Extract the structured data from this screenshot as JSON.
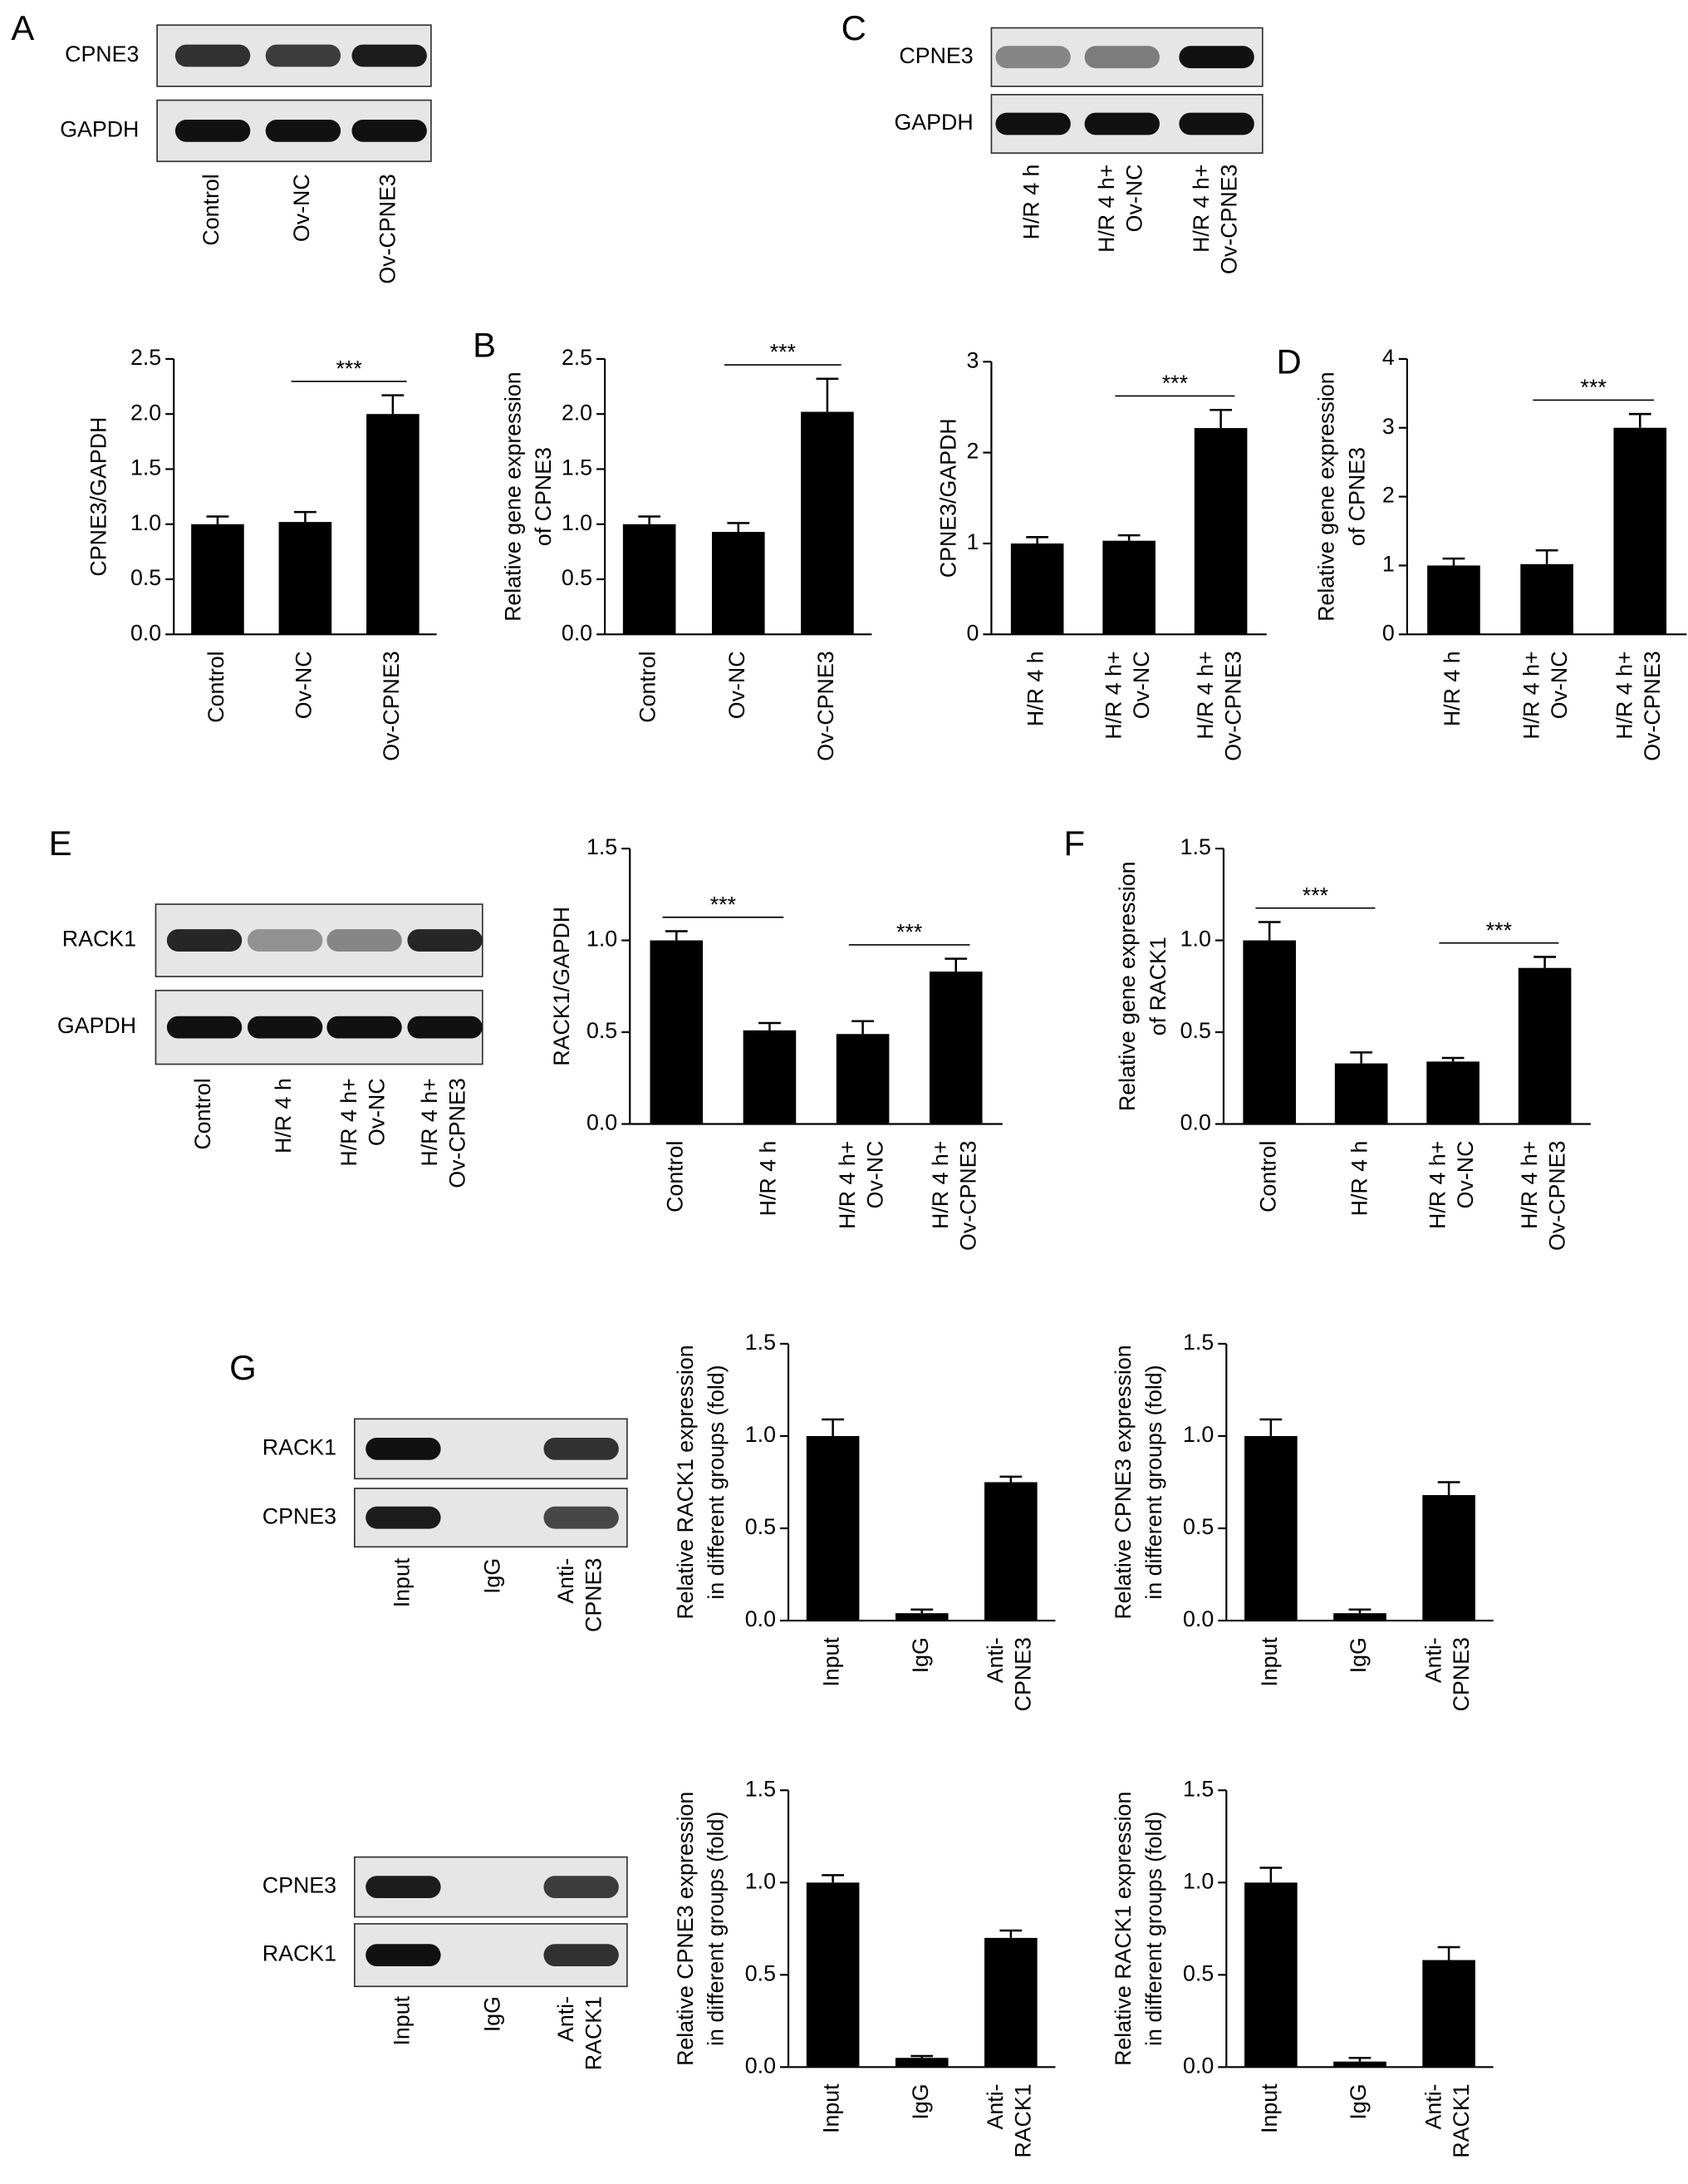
{
  "panels": [
    "A",
    "B",
    "C",
    "D",
    "E",
    "F",
    "G"
  ],
  "blots": [
    {
      "rows": [
        "CPNE3",
        "GAPDH"
      ],
      "lanes": [
        [
          "Control"
        ],
        [
          "Ov-NC"
        ],
        [
          "Ov-CPNE3"
        ]
      ]
    },
    {
      "rows": [
        "CPNE3",
        "GAPDH"
      ],
      "lanes": [
        [
          "H/R 4 h"
        ],
        [
          "H/R 4 h+",
          "Ov-NC"
        ],
        [
          "H/R 4 h+",
          "Ov-CPNE3"
        ]
      ]
    },
    {
      "rows": [
        "RACK1",
        "GAPDH"
      ],
      "lanes": [
        [
          "Control"
        ],
        [
          "H/R 4 h"
        ],
        [
          "H/R 4 h+",
          "Ov-NC"
        ],
        [
          "H/R 4 h+",
          "Ov-CPNE3"
        ]
      ]
    },
    {
      "rows": [
        "RACK1",
        "CPNE3"
      ],
      "lanes": [
        [
          "Input"
        ],
        [
          "IgG"
        ],
        [
          "Anti-",
          "CPNE3"
        ]
      ]
    },
    {
      "rows": [
        "CPNE3",
        "RACK1"
      ],
      "lanes": [
        [
          "Input"
        ],
        [
          "IgG"
        ],
        [
          "Anti-",
          "RACK1"
        ]
      ]
    }
  ],
  "chart_data": [
    {
      "type": "bar",
      "ylabel": [
        "CPNE3/GAPDH"
      ],
      "color": "#000000",
      "categories": [
        [
          "Control"
        ],
        [
          "Ov-NC"
        ],
        [
          "Ov-CPNE3"
        ]
      ],
      "values": [
        1.0,
        1.02,
        2.0
      ],
      "errors": [
        0.07,
        0.09,
        0.17
      ],
      "ylim": [
        0,
        2.5
      ],
      "yticks": [
        {
          "value": 0,
          "label": "0.0"
        },
        {
          "value": 0.5,
          "label": "0.5"
        },
        {
          "value": 1,
          "label": "1.0"
        },
        {
          "value": 1.5,
          "label": "1.5"
        },
        {
          "value": 2,
          "label": "2.0"
        },
        {
          "value": 2.5,
          "label": "2.5"
        }
      ],
      "significance": [
        {
          "label": "***",
          "between": [
            1,
            2
          ]
        }
      ]
    },
    {
      "type": "bar",
      "ylabel": [
        "Relative gene expression",
        "of CPNE3"
      ],
      "color": "#000000",
      "categories": [
        [
          "Control"
        ],
        [
          "Ov-NC"
        ],
        [
          "Ov-CPNE3"
        ]
      ],
      "values": [
        1.0,
        0.93,
        2.02
      ],
      "errors": [
        0.07,
        0.08,
        0.3
      ],
      "ylim": [
        0,
        2.5
      ],
      "yticks": [
        {
          "value": 0,
          "label": "0.0"
        },
        {
          "value": 0.5,
          "label": "0.5"
        },
        {
          "value": 1,
          "label": "1.0"
        },
        {
          "value": 1.5,
          "label": "1.5"
        },
        {
          "value": 2,
          "label": "2.0"
        },
        {
          "value": 2.5,
          "label": "2.5"
        }
      ],
      "significance": [
        {
          "label": "***",
          "between": [
            1,
            2
          ]
        }
      ]
    },
    {
      "type": "bar",
      "ylabel": [
        "CPNE3/GAPDH"
      ],
      "color": "#000000",
      "categories": [
        [
          "H/R 4 h"
        ],
        [
          "H/R 4 h+",
          "Ov-NC"
        ],
        [
          "H/R 4 h+",
          "Ov-CPNE3"
        ]
      ],
      "values": [
        1.0,
        1.03,
        2.27
      ],
      "errors": [
        0.07,
        0.06,
        0.2
      ],
      "ylim": [
        0,
        3
      ],
      "yticks": [
        0,
        1,
        2,
        3
      ],
      "significance": [
        {
          "label": "***",
          "between": [
            1,
            2
          ]
        }
      ]
    },
    {
      "type": "bar",
      "ylabel": [
        "Relative gene expression",
        "of CPNE3"
      ],
      "color": "#000000",
      "categories": [
        [
          "H/R 4 h"
        ],
        [
          "H/R 4 h+",
          "Ov-NC"
        ],
        [
          "H/R 4 h+",
          "Ov-CPNE3"
        ]
      ],
      "values": [
        1.0,
        1.02,
        3.0
      ],
      "errors": [
        0.1,
        0.2,
        0.2
      ],
      "ylim": [
        0,
        4
      ],
      "yticks": [
        0,
        1,
        2,
        3,
        4
      ],
      "significance": [
        {
          "label": "***",
          "between": [
            1,
            2
          ]
        }
      ]
    },
    {
      "type": "bar",
      "ylabel": [
        "RACK1/GAPDH"
      ],
      "color": "#000000",
      "categories": [
        [
          "Control"
        ],
        [
          "H/R 4 h"
        ],
        [
          "H/R 4 h+",
          "Ov-NC"
        ],
        [
          "H/R 4 h+",
          "Ov-CPNE3"
        ]
      ],
      "values": [
        1.0,
        0.51,
        0.49,
        0.83
      ],
      "errors": [
        0.05,
        0.04,
        0.07,
        0.07
      ],
      "ylim": [
        0,
        1.5
      ],
      "yticks": [
        {
          "value": 0,
          "label": "0.0"
        },
        {
          "value": 0.5,
          "label": "0.5"
        },
        {
          "value": 1,
          "label": "1.0"
        },
        {
          "value": 1.5,
          "label": "1.5"
        }
      ],
      "significance": [
        {
          "label": "***",
          "between": [
            0,
            1
          ]
        },
        {
          "label": "***",
          "between": [
            2,
            3
          ]
        }
      ]
    },
    {
      "type": "bar",
      "ylabel": [
        "Relative gene expression",
        "of RACK1"
      ],
      "color": "#000000",
      "categories": [
        [
          "Control"
        ],
        [
          "H/R 4 h"
        ],
        [
          "H/R 4 h+",
          "Ov-NC"
        ],
        [
          "H/R 4 h+",
          "Ov-CPNE3"
        ]
      ],
      "values": [
        1.0,
        0.33,
        0.34,
        0.85
      ],
      "errors": [
        0.1,
        0.06,
        0.02,
        0.06
      ],
      "ylim": [
        0,
        1.5
      ],
      "yticks": [
        {
          "value": 0,
          "label": "0.0"
        },
        {
          "value": 0.5,
          "label": "0.5"
        },
        {
          "value": 1,
          "label": "1.0"
        },
        {
          "value": 1.5,
          "label": "1.5"
        }
      ],
      "significance": [
        {
          "label": "***",
          "between": [
            0,
            1
          ]
        },
        {
          "label": "***",
          "between": [
            2,
            3
          ]
        }
      ]
    },
    {
      "type": "bar",
      "ylabel": [
        "Relative RACK1 expression",
        "in different groups (fold)"
      ],
      "color": "#000000",
      "categories": [
        [
          "Input"
        ],
        [
          "IgG"
        ],
        [
          "Anti-",
          "CPNE3"
        ]
      ],
      "values": [
        1.0,
        0.04,
        0.75
      ],
      "errors": [
        0.09,
        0.02,
        0.03
      ],
      "ylim": [
        0,
        1.5
      ],
      "yticks": [
        {
          "value": 0,
          "label": "0.0"
        },
        {
          "value": 0.5,
          "label": "0.5"
        },
        {
          "value": 1,
          "label": "1.0"
        },
        {
          "value": 1.5,
          "label": "1.5"
        }
      ]
    },
    {
      "type": "bar",
      "ylabel": [
        "Relative CPNE3 expression",
        "in different groups (fold)"
      ],
      "color": "#000000",
      "categories": [
        [
          "Input"
        ],
        [
          "IgG"
        ],
        [
          "Anti-",
          "CPNE3"
        ]
      ],
      "values": [
        1.0,
        0.04,
        0.68
      ],
      "errors": [
        0.09,
        0.02,
        0.07
      ],
      "ylim": [
        0,
        1.5
      ],
      "yticks": [
        {
          "value": 0,
          "label": "0.0"
        },
        {
          "value": 0.5,
          "label": "0.5"
        },
        {
          "value": 1,
          "label": "1.0"
        },
        {
          "value": 1.5,
          "label": "1.5"
        }
      ]
    },
    {
      "type": "bar",
      "ylabel": [
        "Relative CPNE3 expression",
        "in different groups (fold)"
      ],
      "color": "#000000",
      "categories": [
        [
          "Input"
        ],
        [
          "IgG"
        ],
        [
          "Anti-",
          "RACK1"
        ]
      ],
      "values": [
        1.0,
        0.05,
        0.7
      ],
      "errors": [
        0.04,
        0.01,
        0.04
      ],
      "ylim": [
        0,
        1.5
      ],
      "yticks": [
        {
          "value": 0,
          "label": "0.0"
        },
        {
          "value": 0.5,
          "label": "0.5"
        },
        {
          "value": 1,
          "label": "1.0"
        },
        {
          "value": 1.5,
          "label": "1.5"
        }
      ]
    },
    {
      "type": "bar",
      "ylabel": [
        "Relative RACK1 expression",
        "in different groups (fold)"
      ],
      "color": "#000000",
      "categories": [
        [
          "Input"
        ],
        [
          "IgG"
        ],
        [
          "Anti-",
          "RACK1"
        ]
      ],
      "values": [
        1.0,
        0.03,
        0.58
      ],
      "errors": [
        0.08,
        0.02,
        0.07
      ],
      "ylim": [
        0,
        1.5
      ],
      "yticks": [
        {
          "value": 0,
          "label": "0.0"
        },
        {
          "value": 0.5,
          "label": "0.5"
        },
        {
          "value": 1,
          "label": "1.0"
        },
        {
          "value": 1.5,
          "label": "1.5"
        }
      ]
    }
  ]
}
